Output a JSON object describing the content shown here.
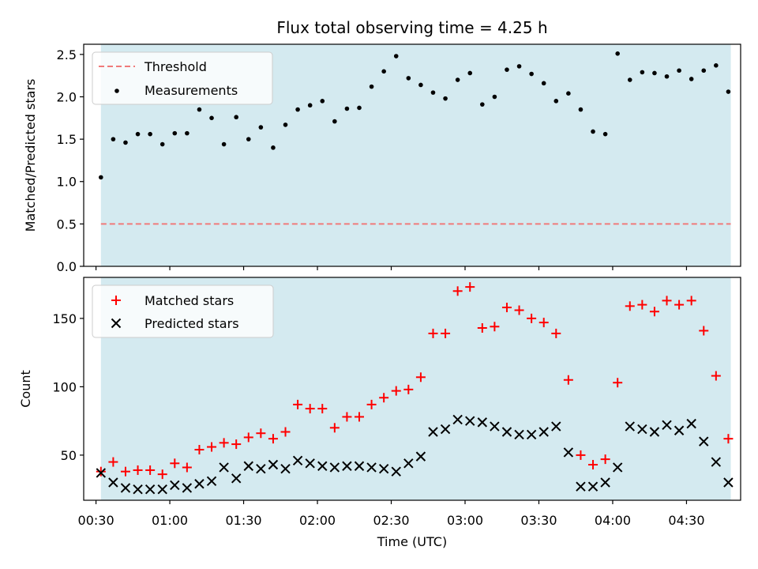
{
  "figure": {
    "title": "Flux total observing time = 4.25 h",
    "xlabel": "Time (UTC)"
  },
  "colors": {
    "shade": "#d4eaf0",
    "threshold": "#f07a7a",
    "measurement": "#000000",
    "matched": "#ff0000",
    "predicted": "#000000",
    "axes": "#000000"
  },
  "chart_data": [
    {
      "type": "scatter",
      "ylabel": "Matched/Predicted stars",
      "ylim": [
        0,
        2.62
      ],
      "yticks": [
        0.0,
        0.5,
        1.0,
        1.5,
        2.0,
        2.5
      ],
      "ytick_labels": [
        "0.0",
        "0.5",
        "1.0",
        "1.5",
        "2.0",
        "2.5"
      ],
      "shaded_time_range": [
        "00:32",
        "04:48"
      ],
      "legend_position": "upper-left",
      "threshold": {
        "name": "Threshold",
        "value": 0.5,
        "style": "dashed"
      },
      "series": [
        {
          "name": "Measurements",
          "marker": "dot",
          "x": [
            "00:32",
            "00:37",
            "00:42",
            "00:47",
            "00:52",
            "00:57",
            "01:02",
            "01:07",
            "01:12",
            "01:17",
            "01:22",
            "01:27",
            "01:32",
            "01:37",
            "01:42",
            "01:47",
            "01:52",
            "01:57",
            "02:02",
            "02:07",
            "02:12",
            "02:17",
            "02:22",
            "02:27",
            "02:32",
            "02:37",
            "02:42",
            "02:47",
            "02:52",
            "02:57",
            "03:02",
            "03:07",
            "03:12",
            "03:17",
            "03:22",
            "03:27",
            "03:32",
            "03:37",
            "03:42",
            "03:47",
            "03:52",
            "03:57",
            "04:02",
            "04:07",
            "04:12",
            "04:17",
            "04:22",
            "04:27",
            "04:32",
            "04:37",
            "04:42",
            "04:47"
          ],
          "y": [
            1.05,
            1.5,
            1.46,
            1.56,
            1.56,
            1.44,
            1.57,
            1.57,
            1.85,
            1.75,
            1.44,
            1.76,
            1.5,
            1.64,
            1.4,
            1.67,
            1.85,
            1.9,
            1.95,
            1.71,
            1.86,
            1.87,
            2.12,
            2.3,
            2.48,
            2.22,
            2.14,
            2.05,
            1.98,
            2.2,
            2.28,
            1.91,
            2.0,
            2.32,
            2.36,
            2.27,
            2.16,
            1.95,
            2.04,
            1.85,
            1.59,
            1.56,
            2.51,
            2.2,
            2.29,
            2.28,
            2.24,
            2.31,
            2.21,
            2.31,
            2.37,
            2.06
          ]
        }
      ]
    },
    {
      "type": "scatter",
      "ylabel": "Count",
      "ylim": [
        17,
        180
      ],
      "yticks": [
        50,
        100,
        150
      ],
      "ytick_labels": [
        "50",
        "100",
        "150"
      ],
      "xticks": [
        "00:30",
        "01:00",
        "01:30",
        "02:00",
        "02:30",
        "03:00",
        "03:30",
        "04:00",
        "04:30"
      ],
      "shaded_time_range": [
        "00:32",
        "04:48"
      ],
      "legend_position": "upper-left",
      "series": [
        {
          "name": "Matched stars",
          "marker": "plus",
          "x": [
            "00:32",
            "00:37",
            "00:42",
            "00:47",
            "00:52",
            "00:57",
            "01:02",
            "01:07",
            "01:12",
            "01:17",
            "01:22",
            "01:27",
            "01:32",
            "01:37",
            "01:42",
            "01:47",
            "01:52",
            "01:57",
            "02:02",
            "02:07",
            "02:12",
            "02:17",
            "02:22",
            "02:27",
            "02:32",
            "02:37",
            "02:42",
            "02:47",
            "02:52",
            "02:57",
            "03:02",
            "03:07",
            "03:12",
            "03:17",
            "03:22",
            "03:27",
            "03:32",
            "03:37",
            "03:42",
            "03:47",
            "03:52",
            "03:57",
            "04:02",
            "04:07",
            "04:12",
            "04:17",
            "04:22",
            "04:27",
            "04:32",
            "04:37",
            "04:42",
            "04:47"
          ],
          "y": [
            38,
            45,
            38,
            39,
            39,
            36,
            44,
            41,
            54,
            56,
            59,
            58,
            63,
            66,
            62,
            67,
            87,
            84,
            84,
            70,
            78,
            78,
            87,
            92,
            97,
            98,
            107,
            139,
            139,
            170,
            173,
            143,
            144,
            158,
            156,
            150,
            147,
            139,
            105,
            50,
            43,
            47,
            103,
            159,
            160,
            155,
            163,
            160,
            163,
            141,
            108,
            62
          ]
        },
        {
          "name": "Predicted stars",
          "marker": "x",
          "x": [
            "00:32",
            "00:37",
            "00:42",
            "00:47",
            "00:52",
            "00:57",
            "01:02",
            "01:07",
            "01:12",
            "01:17",
            "01:22",
            "01:27",
            "01:32",
            "01:37",
            "01:42",
            "01:47",
            "01:52",
            "01:57",
            "02:02",
            "02:07",
            "02:12",
            "02:17",
            "02:22",
            "02:27",
            "02:32",
            "02:37",
            "02:42",
            "02:47",
            "02:52",
            "02:57",
            "03:02",
            "03:07",
            "03:12",
            "03:17",
            "03:22",
            "03:27",
            "03:32",
            "03:37",
            "03:42",
            "03:47",
            "03:52",
            "03:57",
            "04:02",
            "04:07",
            "04:12",
            "04:17",
            "04:22",
            "04:27",
            "04:32",
            "04:37",
            "04:42",
            "04:47"
          ],
          "y": [
            37,
            30,
            26,
            25,
            25,
            25,
            28,
            26,
            29,
            31,
            41,
            33,
            42,
            40,
            43,
            40,
            46,
            44,
            42,
            41,
            42,
            42,
            41,
            40,
            38,
            44,
            49,
            67,
            69,
            76,
            75,
            74,
            71,
            67,
            65,
            65,
            67,
            71,
            52,
            27,
            27,
            30,
            41,
            71,
            69,
            67,
            72,
            68,
            73,
            60,
            45,
            30
          ]
        }
      ]
    }
  ]
}
